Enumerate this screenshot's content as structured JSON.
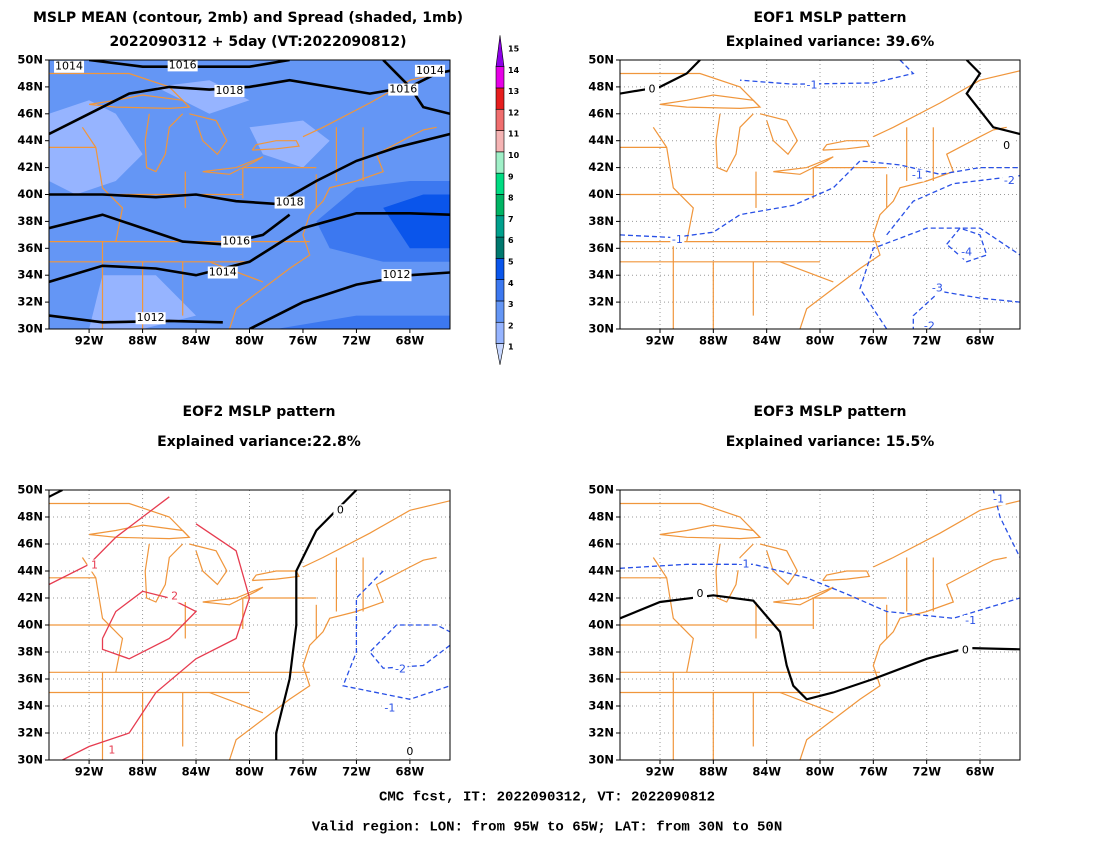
{
  "chart_data": [
    {
      "type": "contour_map",
      "title": "MSLP MEAN (contour, 2mb) and Spread (shaded, 1mb)",
      "subtitle": "2022090312 + 5day (VT:2022090812)",
      "xlim": [
        -95,
        -65
      ],
      "ylim": [
        30,
        50
      ],
      "grid": false,
      "xticks": [
        {
          "value": -92,
          "label": "92W"
        },
        {
          "value": -88,
          "label": "88W"
        },
        {
          "value": -84,
          "label": "84W"
        },
        {
          "value": -80,
          "label": "80W"
        },
        {
          "value": -76,
          "label": "76W"
        },
        {
          "value": -72,
          "label": "72W"
        },
        {
          "value": -68,
          "label": "68W"
        }
      ],
      "yticks": [
        {
          "value": 30,
          "label": "30N"
        },
        {
          "value": 32,
          "label": "32N"
        },
        {
          "value": 34,
          "label": "34N"
        },
        {
          "value": 36,
          "label": "36N"
        },
        {
          "value": 38,
          "label": "38N"
        },
        {
          "value": 40,
          "label": "40N"
        },
        {
          "value": 42,
          "label": "42N"
        },
        {
          "value": 44,
          "label": "44N"
        },
        {
          "value": 46,
          "label": "46N"
        },
        {
          "value": 48,
          "label": "48N"
        },
        {
          "value": 50,
          "label": "50N"
        }
      ],
      "contour_labels": {
        "values": [
          1014,
          1016,
          1018,
          1016,
          1014,
          1018,
          1016,
          1014,
          1012,
          1012
        ],
        "lon": [
          -93.5,
          -85,
          -81.5,
          -68.5,
          -66.5,
          -77,
          -81,
          -82,
          -69,
          -87.4
        ],
        "lat": [
          49.5,
          49.6,
          47.7,
          47.8,
          49.2,
          39.4,
          36.5,
          34.2,
          34,
          30.8
        ]
      },
      "colorbar": {
        "levels": [
          1,
          2,
          3,
          4,
          5,
          6,
          7,
          8,
          9,
          10,
          11,
          12,
          13,
          14,
          15
        ],
        "colors": [
          "#c8d8ff",
          "#96b4ff",
          "#6496f5",
          "#3c78f0",
          "#0a55eb",
          "#00786e",
          "#00a08c",
          "#00b464",
          "#00dc82",
          "#a0f0c8",
          "#f5b4b4",
          "#f06e6e",
          "#e61e1e",
          "#e600e6",
          "#8c00e6"
        ]
      }
    },
    {
      "type": "contour_map",
      "title": "EOF1 MSLP pattern",
      "subtitle": "Explained variance: 39.6%",
      "xlim": [
        -95,
        -65
      ],
      "ylim": [
        30,
        50
      ],
      "grid": true,
      "xticks": [
        {
          "value": -92,
          "label": "92W"
        },
        {
          "value": -88,
          "label": "88W"
        },
        {
          "value": -84,
          "label": "84W"
        },
        {
          "value": -80,
          "label": "80W"
        },
        {
          "value": -76,
          "label": "76W"
        },
        {
          "value": -72,
          "label": "72W"
        },
        {
          "value": -68,
          "label": "68W"
        }
      ],
      "yticks": [
        {
          "value": 30,
          "label": "30N"
        },
        {
          "value": 32,
          "label": "32N"
        },
        {
          "value": 34,
          "label": "34N"
        },
        {
          "value": 36,
          "label": "36N"
        },
        {
          "value": 38,
          "label": "38N"
        },
        {
          "value": 40,
          "label": "40N"
        },
        {
          "value": 42,
          "label": "42N"
        },
        {
          "value": 44,
          "label": "44N"
        },
        {
          "value": 46,
          "label": "46N"
        },
        {
          "value": 48,
          "label": "48N"
        },
        {
          "value": 50,
          "label": "50N"
        }
      ],
      "contour_labels": {
        "values": [
          0,
          -1,
          -1,
          -2,
          -1,
          -3,
          -4,
          0,
          -2
        ],
        "lon": [
          -92.6,
          -80.6,
          -72.7,
          -65.8,
          -90.7,
          -71.2,
          -69,
          -66,
          -71.8
        ],
        "lat": [
          47.8,
          48.1,
          41.4,
          41,
          36.6,
          33,
          35.7,
          43.6,
          30.2
        ]
      }
    },
    {
      "type": "contour_map",
      "title": "EOF2 MSLP pattern",
      "subtitle": "Explained variance:22.8%",
      "xlim": [
        -95,
        -65
      ],
      "ylim": [
        30,
        50
      ],
      "grid": true,
      "xticks": [
        {
          "value": -92,
          "label": "92W"
        },
        {
          "value": -88,
          "label": "88W"
        },
        {
          "value": -84,
          "label": "84W"
        },
        {
          "value": -80,
          "label": "80W"
        },
        {
          "value": -76,
          "label": "76W"
        },
        {
          "value": -72,
          "label": "72W"
        },
        {
          "value": -68,
          "label": "68W"
        }
      ],
      "yticks": [
        {
          "value": 30,
          "label": "30N"
        },
        {
          "value": 32,
          "label": "32N"
        },
        {
          "value": 34,
          "label": "34N"
        },
        {
          "value": 36,
          "label": "36N"
        },
        {
          "value": 38,
          "label": "38N"
        },
        {
          "value": 40,
          "label": "40N"
        },
        {
          "value": 42,
          "label": "42N"
        },
        {
          "value": 44,
          "label": "44N"
        },
        {
          "value": 46,
          "label": "46N"
        },
        {
          "value": 48,
          "label": "48N"
        },
        {
          "value": 50,
          "label": "50N"
        }
      ],
      "contour_labels": {
        "values": [
          0,
          1,
          2,
          -2,
          -1,
          0,
          1
        ],
        "lon": [
          -73.2,
          -91.6,
          -85.6,
          -68.7,
          -69.5,
          -68,
          -90.3
        ],
        "lat": [
          48.5,
          44.4,
          42.1,
          36.7,
          33.8,
          30.6,
          30.7
        ]
      }
    },
    {
      "type": "contour_map",
      "title": "EOF3 MSLP pattern",
      "subtitle": "Explained variance: 15.5%",
      "xlim": [
        -95,
        -65
      ],
      "ylim": [
        30,
        50
      ],
      "grid": true,
      "xticks": [
        {
          "value": -92,
          "label": "92W"
        },
        {
          "value": -88,
          "label": "88W"
        },
        {
          "value": -84,
          "label": "84W"
        },
        {
          "value": -80,
          "label": "80W"
        },
        {
          "value": -76,
          "label": "76W"
        },
        {
          "value": -72,
          "label": "72W"
        },
        {
          "value": -68,
          "label": "68W"
        }
      ],
      "yticks": [
        {
          "value": 30,
          "label": "30N"
        },
        {
          "value": 32,
          "label": "32N"
        },
        {
          "value": 34,
          "label": "34N"
        },
        {
          "value": 36,
          "label": "36N"
        },
        {
          "value": 38,
          "label": "38N"
        },
        {
          "value": 40,
          "label": "40N"
        },
        {
          "value": 42,
          "label": "42N"
        },
        {
          "value": 44,
          "label": "44N"
        },
        {
          "value": 46,
          "label": "46N"
        },
        {
          "value": 48,
          "label": "48N"
        },
        {
          "value": 50,
          "label": "50N"
        }
      ],
      "contour_labels": {
        "values": [
          0,
          -1,
          -1,
          0,
          -1
        ],
        "lon": [
          -89,
          -85.7,
          -68.7,
          -69.1,
          -66.6
        ],
        "lat": [
          42.3,
          44.5,
          40.3,
          38.1,
          49.3
        ]
      }
    }
  ],
  "footer": [
    "CMC fcst, IT: 2022090312, VT: 2022090812",
    "Valid region: LON: from 95W to 65W; LAT: from 30N to 50N"
  ]
}
